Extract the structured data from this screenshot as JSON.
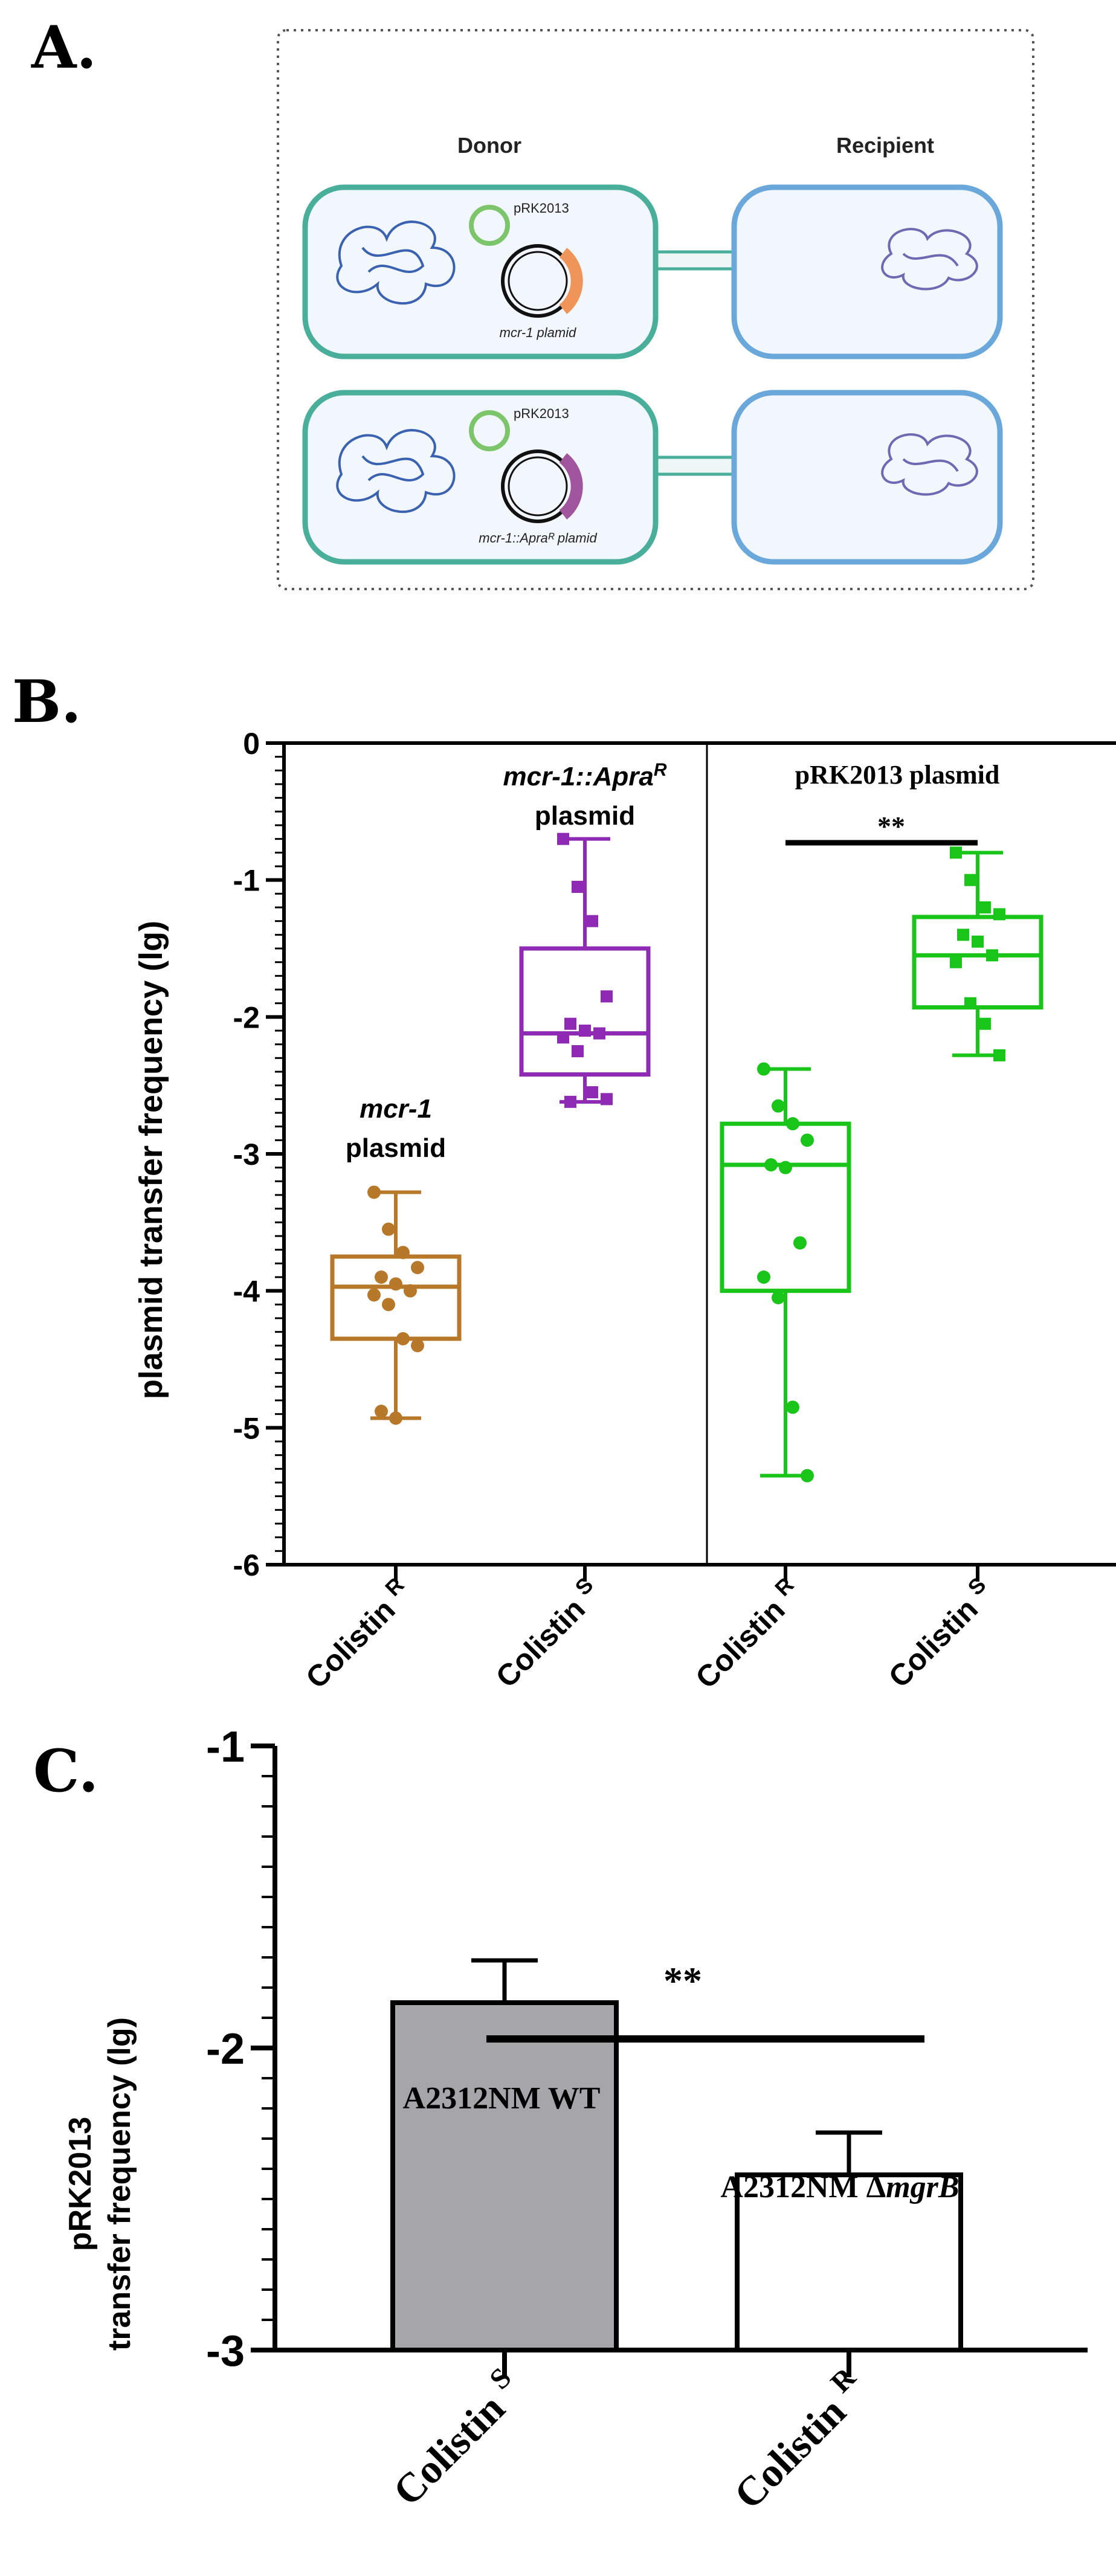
{
  "panels": {
    "a": {
      "letter": "A."
    },
    "b": {
      "letter": "B."
    },
    "c": {
      "letter": "C."
    }
  },
  "diagram": {
    "donor_label": "Donor",
    "recipient_label": "Recipient",
    "row1": {
      "helper_plasmid": "pRK2013",
      "cargo_plasmid": "mcr-1 plamid",
      "cargo_color": "#f0955a"
    },
    "row2": {
      "helper_plasmid": "pRK2013",
      "cargo_plasmid": "mcr-1::Apraᴿ plamid",
      "cargo_color": "#a0559e"
    },
    "colors": {
      "donor_stroke": "#4aaf9a",
      "recipient_stroke": "#6aa8db",
      "cell_fill": "#f1f7fc",
      "chromosome_donor": "#3a62b0",
      "chromosome_recipient": "#6f68b3",
      "helper_ring": "#7cc56a"
    }
  },
  "chart_data": [
    {
      "type": "box",
      "panel": "B",
      "ylabel": "plasmid transfer frequency (lg)",
      "ylim": [
        -6,
        0
      ],
      "yticks": [
        "0",
        "-1",
        "-2",
        "-3",
        "-4",
        "-5",
        "-6"
      ],
      "groups": [
        {
          "name": "mcr-1 plasmid",
          "label_line1": "mcr-1",
          "label_line2": "plasmid",
          "category": "Colistin",
          "superscript": "R",
          "color": "#b8782a",
          "marker": "circle",
          "min": -4.93,
          "q1": -4.35,
          "median": -3.97,
          "q3": -3.75,
          "max": -3.28,
          "points": [
            -3.28,
            -3.55,
            -3.72,
            -3.83,
            -3.9,
            -3.95,
            -4.0,
            -4.03,
            -4.1,
            -4.35,
            -4.4,
            -4.88,
            -4.93
          ]
        },
        {
          "name": "mcr-1::AprаR plasmid",
          "label_line1": "mcr-1::Apra",
          "label_line1_sup": "R",
          "label_line2": "plasmid",
          "category": "Colistin",
          "superscript": "S",
          "color": "#8e2ab3",
          "marker": "square",
          "min": -2.62,
          "q1": -2.42,
          "median": -2.12,
          "q3": -1.5,
          "max": -0.7,
          "points": [
            -0.7,
            -1.05,
            -1.3,
            -1.85,
            -2.05,
            -2.1,
            -2.12,
            -2.15,
            -2.25,
            -2.55,
            -2.6,
            -2.62
          ]
        },
        {
          "name": "pRK2013 plasmid (Colistin R)",
          "category": "Colistin",
          "superscript": "R",
          "color": "#19c519",
          "marker": "circle",
          "min": -5.35,
          "q1": -4.0,
          "median": -3.08,
          "q3": -2.78,
          "max": -2.38,
          "points": [
            -2.38,
            -2.65,
            -2.78,
            -2.9,
            -3.08,
            -3.1,
            -3.65,
            -3.9,
            -4.05,
            -4.85,
            -5.35
          ]
        },
        {
          "name": "pRK2013 plasmid (Colistin S)",
          "category": "Colistin",
          "superscript": "S",
          "color": "#19c519",
          "marker": "square",
          "min": -2.28,
          "q1": -1.93,
          "median": -1.55,
          "q3": -1.27,
          "max": -0.8,
          "points": [
            -0.8,
            -1.0,
            -1.2,
            -1.25,
            -1.4,
            -1.45,
            -1.55,
            -1.6,
            -1.9,
            -2.05,
            -2.28
          ]
        }
      ],
      "divider_label": "pRK2013 plasmid",
      "significance": "**"
    },
    {
      "type": "bar",
      "panel": "C",
      "ylabel_line1": "pRK2013",
      "ylabel_line2": "transfer frequency (lg)",
      "ylim": [
        -3,
        -1
      ],
      "yticks": [
        "-1",
        "-2",
        "-3"
      ],
      "bars": [
        {
          "name": "A2312NM WT",
          "category": "Colistin",
          "superscript": "S",
          "value": -1.85,
          "error": 0.14,
          "fill": "#a6a6aa"
        },
        {
          "name": "A2312NM ΔmgrB",
          "label_prefix": "A2312NM Δ",
          "label_italic": "mgrB",
          "category": "Colistin",
          "superscript": "R",
          "value": -2.42,
          "error": 0.14,
          "fill": "#ffffff"
        }
      ],
      "significance": "**"
    }
  ]
}
